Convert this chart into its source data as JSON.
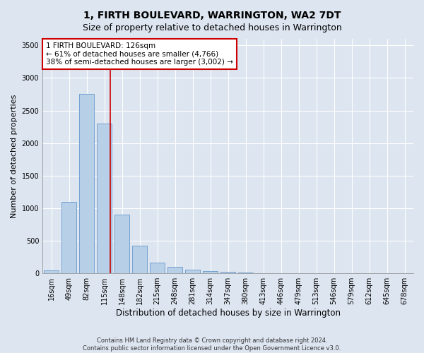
{
  "title": "1, FIRTH BOULEVARD, WARRINGTON, WA2 7DT",
  "subtitle": "Size of property relative to detached houses in Warrington",
  "xlabel": "Distribution of detached houses by size in Warrington",
  "ylabel": "Number of detached properties",
  "footnote1": "Contains HM Land Registry data © Crown copyright and database right 2024.",
  "footnote2": "Contains public sector information licensed under the Open Government Licence v3.0.",
  "categories": [
    "16sqm",
    "49sqm",
    "82sqm",
    "115sqm",
    "148sqm",
    "182sqm",
    "215sqm",
    "248sqm",
    "281sqm",
    "314sqm",
    "347sqm",
    "380sqm",
    "413sqm",
    "446sqm",
    "479sqm",
    "513sqm",
    "546sqm",
    "579sqm",
    "612sqm",
    "645sqm",
    "678sqm"
  ],
  "values": [
    50,
    1100,
    2750,
    2300,
    900,
    430,
    160,
    105,
    60,
    40,
    20,
    10,
    5,
    3,
    2,
    1,
    1,
    0,
    0,
    0,
    0
  ],
  "bar_color": "#b8cfe8",
  "bar_edge_color": "#6699cc",
  "red_line_x": 3.35,
  "red_line_label": "1 FIRTH BOULEVARD: 126sqm",
  "annotation_line1": "← 61% of detached houses are smaller (4,766)",
  "annotation_line2": "38% of semi-detached houses are larger (3,002) →",
  "annotation_box_color": "#ffffff",
  "annotation_box_edge": "#cc0000",
  "ylim": [
    0,
    3600
  ],
  "yticks": [
    0,
    500,
    1000,
    1500,
    2000,
    2500,
    3000,
    3500
  ],
  "background_color": "#dde5f0",
  "plot_background": "#dde5f0",
  "grid_color": "#ffffff",
  "title_fontsize": 10,
  "subtitle_fontsize": 9,
  "xlabel_fontsize": 8.5,
  "ylabel_fontsize": 8,
  "tick_fontsize": 7,
  "annotation_fontsize": 7.5,
  "footnote_fontsize": 6
}
